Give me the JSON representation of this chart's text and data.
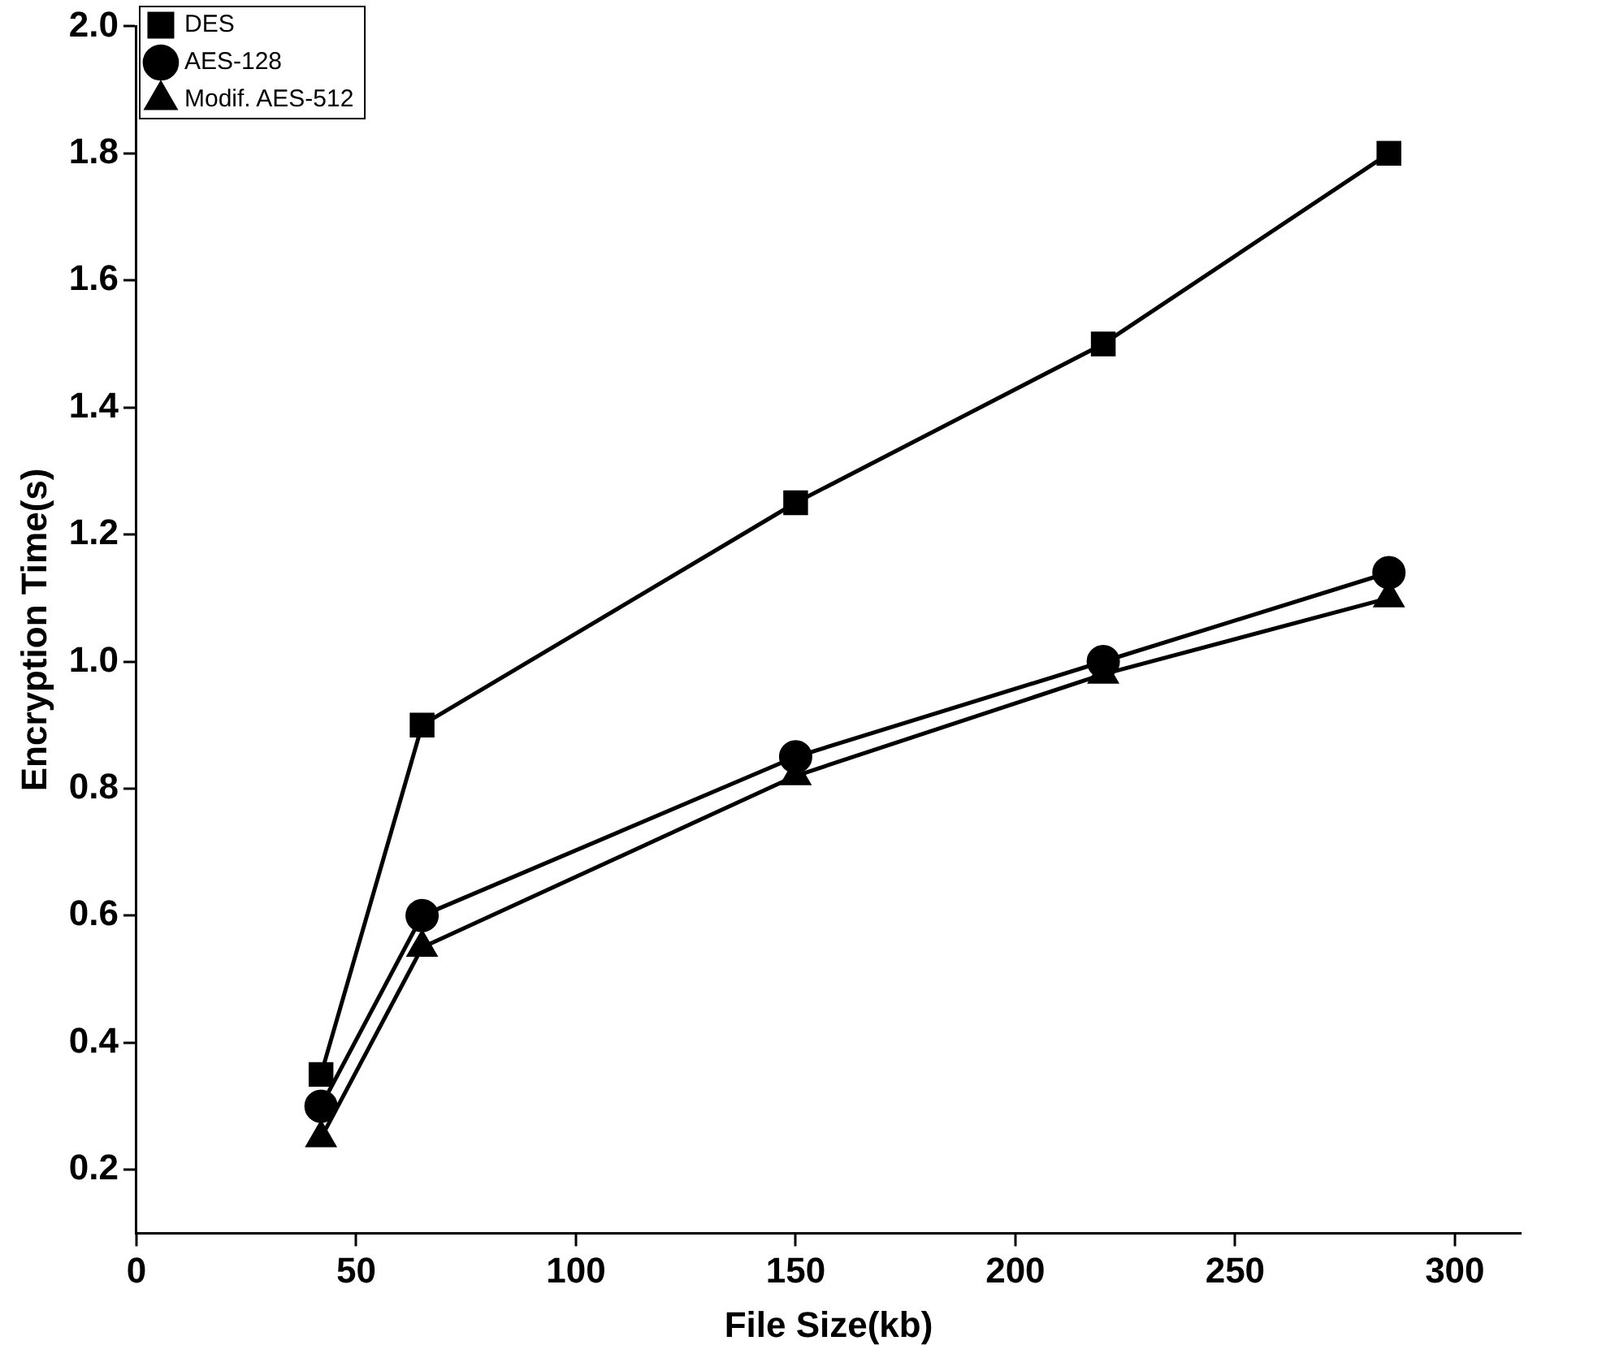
{
  "chart_data": {
    "type": "line",
    "xlabel": "File Size(kb)",
    "ylabel": "Encryption Time(s)",
    "x": [
      42,
      65,
      150,
      220,
      285
    ],
    "series": [
      {
        "name": "DES",
        "color": "#000000",
        "marker": "square",
        "values": [
          0.35,
          0.9,
          1.25,
          1.5,
          1.8
        ]
      },
      {
        "name": "AES-128",
        "color": "#000000",
        "marker": "circle",
        "values": [
          0.3,
          0.6,
          0.85,
          1.0,
          1.14
        ]
      },
      {
        "name": "Modif. AES-512",
        "color": "#000000",
        "marker": "triangle",
        "values": [
          0.25,
          0.55,
          0.82,
          0.98,
          1.1
        ]
      }
    ],
    "xlim": [
      0,
      315
    ],
    "xticks": [
      0,
      50,
      100,
      150,
      200,
      250,
      300
    ],
    "ylim": [
      0.1,
      2.0
    ],
    "yticks": [
      0.2,
      0.4,
      0.6,
      0.8,
      {
        "value": 1,
        "label": "1.0"
      },
      1.2,
      1.4,
      1.6,
      1.8,
      {
        "value": 2,
        "label": "2.0"
      }
    ],
    "grid": false,
    "legend": "top left",
    "line_style": "solid"
  }
}
